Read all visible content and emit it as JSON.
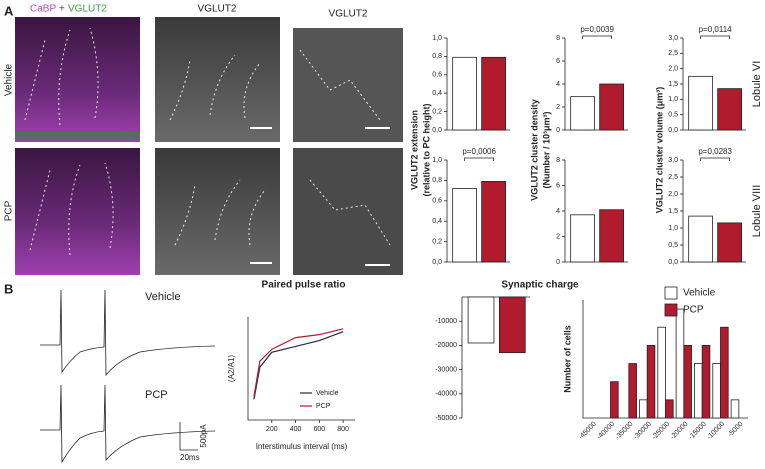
{
  "panels": [
    "A",
    "B"
  ],
  "panel_a": {
    "header": [
      "CaBP",
      "+",
      "VGLUT2"
    ],
    "col2_title": "VGLUT2",
    "col3_title": "VGLUT2",
    "rows": [
      "Vehicle",
      "PCP"
    ]
  },
  "panel_b": {
    "traces": [
      "Vehicle",
      "PCP"
    ],
    "scale_y": "500pA",
    "scale_x": "20ms"
  },
  "chart_data": [
    {
      "type": "bar",
      "ylabel": [
        "VGLUT2 extension",
        "(relative to PC height)"
      ],
      "values": [
        0.79,
        0.79
      ],
      "colors": [
        "#ffffff",
        "#b01c2e"
      ],
      "ylim": [
        0,
        1.0
      ],
      "yticks": [
        {
          "value": 0,
          "label": "0,0"
        },
        {
          "value": 0.2,
          "label": "0,2"
        },
        {
          "value": 0.4,
          "label": "0,4"
        },
        {
          "value": 0.6,
          "label": "0,6"
        },
        {
          "value": 0.8,
          "label": "0,8"
        },
        {
          "value": 1.0,
          "label": "1,0"
        }
      ]
    },
    {
      "type": "bar",
      "ylabel": [
        "VGLUT2 cluster density",
        "(Number / 10³μm³)"
      ],
      "annotation": "p=0,0039",
      "values": [
        2.9,
        4.0
      ],
      "colors": [
        "#ffffff",
        "#b01c2e"
      ],
      "ylim": [
        0,
        8
      ],
      "yticks": [
        0,
        2,
        4,
        6,
        8
      ]
    },
    {
      "type": "bar",
      "ylabel": [
        "VGLUT2 cluster volume (μm³)"
      ],
      "row_label": "Lobule VI",
      "annotation": "p=0,0114",
      "values": [
        1.75,
        1.35
      ],
      "colors": [
        "#ffffff",
        "#b01c2e"
      ],
      "ylim": [
        0,
        3.0
      ],
      "yticks": [
        {
          "value": 0,
          "label": "0,0"
        },
        {
          "value": 0.5,
          "label": "0,5"
        },
        {
          "value": 1.0,
          "label": "1,0"
        },
        {
          "value": 1.5,
          "label": "1,5"
        },
        {
          "value": 2.0,
          "label": "2,0"
        },
        {
          "value": 2.5,
          "label": "2,5"
        },
        {
          "value": 3.0,
          "label": "3,0"
        }
      ]
    },
    {
      "type": "bar",
      "annotation": "p=0,0006",
      "values": [
        0.72,
        0.79
      ],
      "colors": [
        "#ffffff",
        "#b01c2e"
      ],
      "ylim": [
        0,
        1.0
      ],
      "yticks": [
        {
          "value": 0,
          "label": "0,0"
        },
        {
          "value": 0.2,
          "label": "0,2"
        },
        {
          "value": 0.4,
          "label": "0,4"
        },
        {
          "value": 0.6,
          "label": "0,6"
        },
        {
          "value": 0.8,
          "label": "0,8"
        },
        {
          "value": 1.0,
          "label": "1,0"
        }
      ]
    },
    {
      "type": "bar",
      "values": [
        3.7,
        4.1
      ],
      "colors": [
        "#ffffff",
        "#b01c2e"
      ],
      "ylim": [
        0,
        8
      ],
      "yticks": [
        0,
        2,
        4,
        6,
        8
      ]
    },
    {
      "type": "bar",
      "row_label": "Lobule VIII",
      "annotation": "p=0,0283",
      "values": [
        1.35,
        1.15
      ],
      "colors": [
        "#ffffff",
        "#b01c2e"
      ],
      "ylim": [
        0,
        3.0
      ],
      "yticks": [
        {
          "value": 0,
          "label": "0,0"
        },
        {
          "value": 0.5,
          "label": "0,5"
        },
        {
          "value": 1.0,
          "label": "1,0"
        },
        {
          "value": 1.5,
          "label": "1,5"
        },
        {
          "value": 2.0,
          "label": "2,0"
        },
        {
          "value": 2.5,
          "label": "2,5"
        },
        {
          "value": 3.0,
          "label": "3,0"
        }
      ]
    },
    {
      "type": "line",
      "title": "Paired pulse ratio",
      "xlabel": "Interstimulus interval (ms)",
      "ylabel": "(A2/A1)",
      "x": [
        50,
        100,
        200,
        400,
        600,
        800
      ],
      "xlim": [
        0,
        900
      ],
      "xticks": [
        200,
        400,
        600,
        800
      ],
      "ylim": [
        0.55,
        0.9
      ],
      "series": [
        {
          "name": "Vehicle",
          "color": "#1f2a44",
          "values": [
            0.62,
            0.73,
            0.78,
            0.8,
            0.82,
            0.85
          ]
        },
        {
          "name": "PCP",
          "color": "#b01c2e",
          "values": [
            0.63,
            0.75,
            0.79,
            0.83,
            0.84,
            0.86
          ]
        }
      ]
    },
    {
      "type": "negbar",
      "title": "Synaptic charge",
      "values": [
        -19000,
        -23000
      ],
      "colors": [
        "#ffffff",
        "#b01c2e"
      ],
      "ylim": [
        -50000,
        0
      ],
      "yticks": [
        -10000,
        -20000,
        -30000,
        -40000,
        -50000
      ]
    },
    {
      "type": "histogram",
      "ylabel": "Number of cells",
      "legend": "top-right",
      "categories": [
        "-45000",
        "-40000",
        "-35000",
        "-30000",
        "-25000",
        "-20000",
        "-15000",
        "-10000",
        "-5000"
      ],
      "ylim": [
        0,
        6.5
      ],
      "series": [
        {
          "name": "Vehicle",
          "color": "#ffffff",
          "values": [
            0,
            0,
            0,
            1,
            5,
            6,
            3,
            3,
            1
          ]
        },
        {
          "name": "PCP",
          "color": "#b01c2e",
          "values": [
            0,
            2,
            3,
            4,
            1,
            4,
            4,
            5,
            0
          ]
        }
      ]
    }
  ]
}
